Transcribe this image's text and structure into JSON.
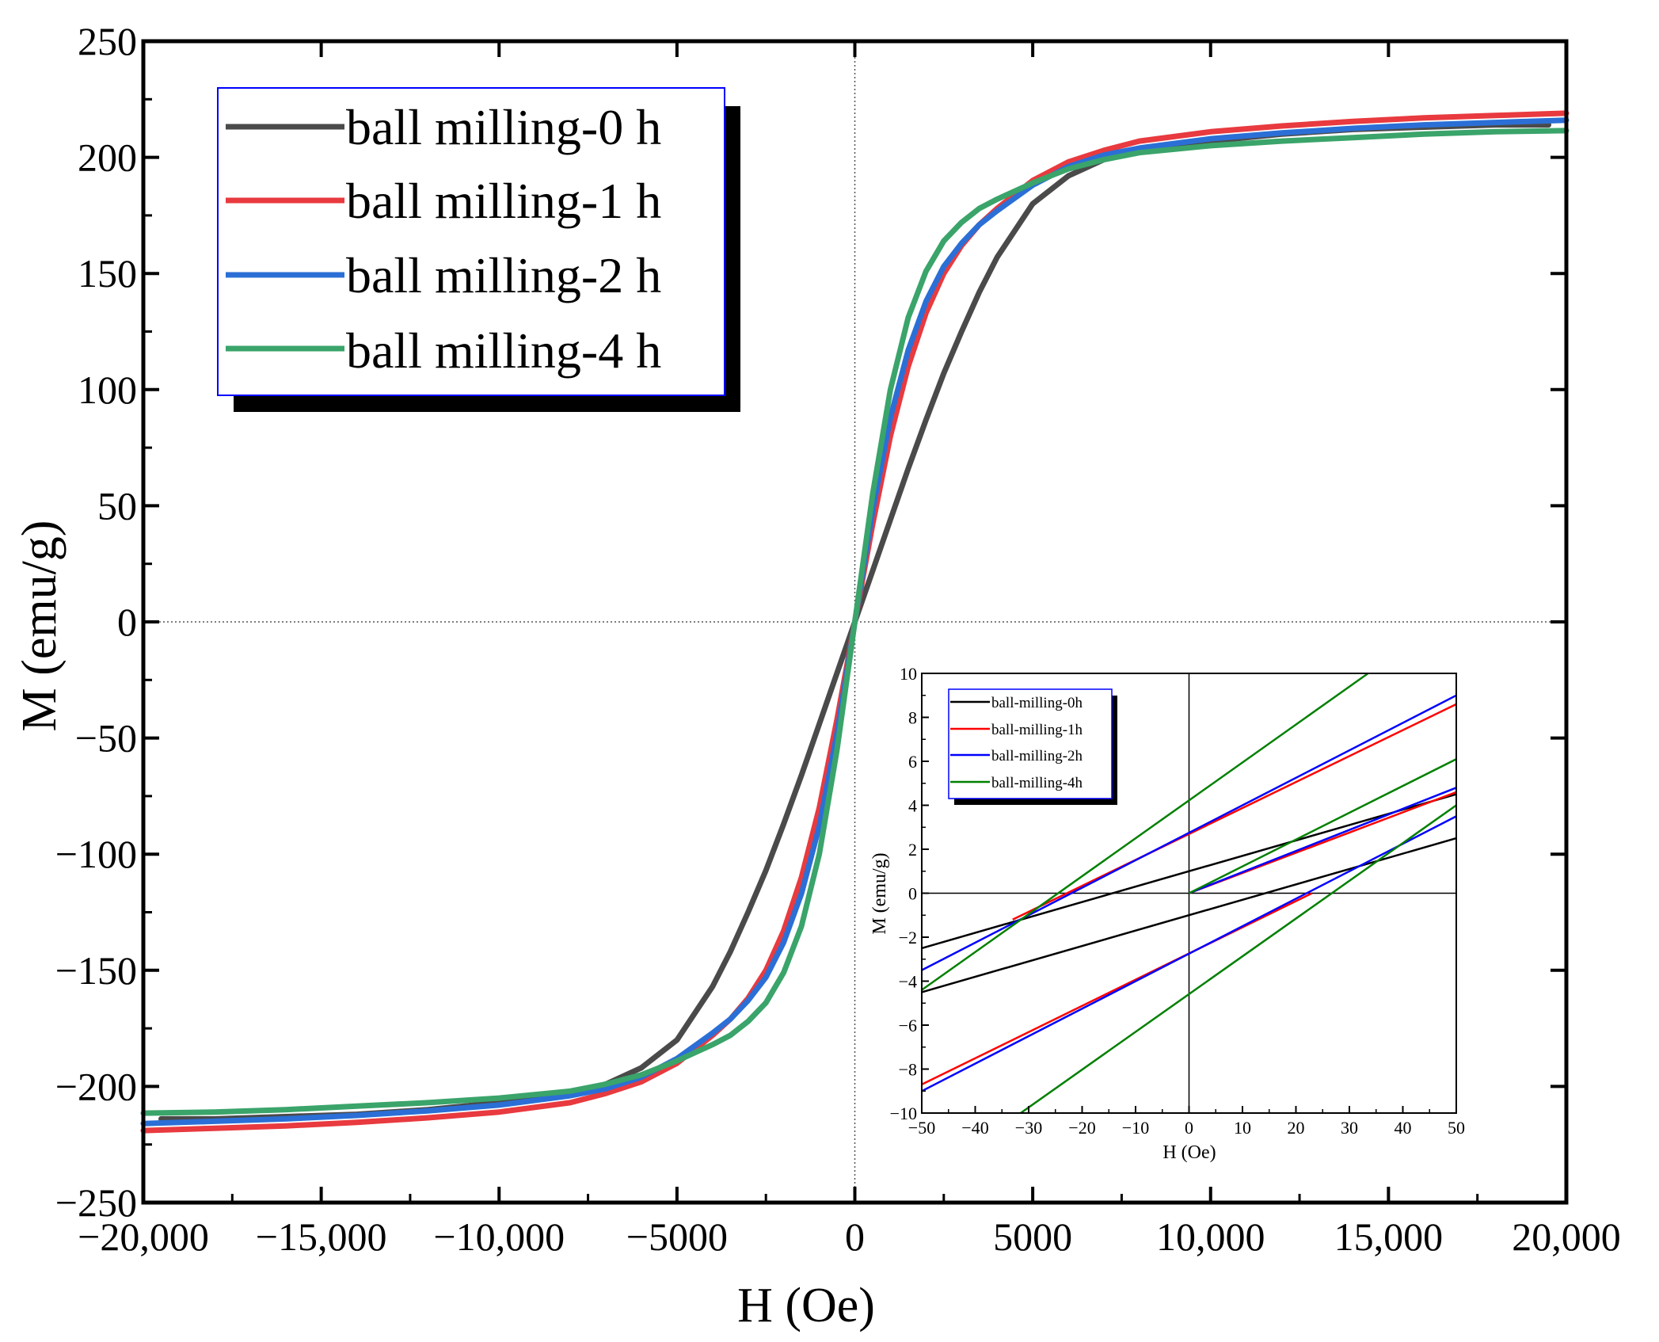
{
  "chart_data": [
    {
      "id": "main",
      "type": "line",
      "title": "",
      "xlabel": "H (Oe)",
      "ylabel": "M (emu/g)",
      "xlim": [
        -20000,
        20000
      ],
      "ylim": [
        -250,
        250
      ],
      "xticks": [
        -20000,
        -15000,
        -10000,
        -5000,
        0,
        5000,
        10000,
        15000,
        20000
      ],
      "xtick_labels": [
        "−20,000",
        "−15,000",
        "−10,000",
        "−5000",
        "0",
        "5000",
        "10,000",
        "15,000",
        "20,000"
      ],
      "yticks": [
        -250,
        -200,
        -150,
        -100,
        -50,
        0,
        50,
        100,
        150,
        200,
        250
      ],
      "ytick_labels": [
        "−250",
        "−200",
        "−150",
        "−100",
        "−50",
        "0",
        "50",
        "100",
        "150",
        "200",
        "250"
      ],
      "zero_lines": true,
      "legend_position": "top-left",
      "series": [
        {
          "name": "ball milling-0 h",
          "color": "#4a4a4a",
          "x": [
            0,
            500,
            1000,
            1500,
            2000,
            2500,
            3000,
            3500,
            4000,
            5000,
            6000,
            7000,
            8000,
            10000,
            12000,
            14000,
            16000,
            18000,
            19500
          ],
          "y": [
            0,
            22,
            44,
            66,
            87,
            107,
            125,
            142,
            157,
            180,
            192,
            199,
            203,
            207,
            210,
            212,
            213,
            214,
            214
          ]
        },
        {
          "name": "ball milling-1 h",
          "color": "#e83a3f",
          "x": [
            0,
            500,
            1000,
            1500,
            2000,
            2500,
            3000,
            3500,
            4000,
            5000,
            6000,
            7000,
            8000,
            10000,
            12000,
            14000,
            16000,
            18000,
            20000
          ],
          "y": [
            0,
            42,
            80,
            110,
            133,
            150,
            162,
            171,
            178,
            190,
            198,
            203,
            207,
            211,
            213.5,
            215.5,
            217,
            218,
            219
          ]
        },
        {
          "name": "ball milling-2 h",
          "color": "#2b6fd6",
          "x": [
            0,
            500,
            1000,
            1500,
            2000,
            2500,
            3000,
            3500,
            4000,
            5000,
            6000,
            7000,
            8000,
            10000,
            12000,
            14000,
            16000,
            18000,
            20000
          ],
          "y": [
            0,
            48,
            88,
            117,
            138,
            153,
            163,
            171,
            177,
            188,
            196,
            201,
            204,
            208,
            210.5,
            212.5,
            214,
            215,
            216
          ]
        },
        {
          "name": "ball milling-4 h",
          "color": "#3aa46a",
          "x": [
            0,
            500,
            1000,
            1500,
            2000,
            2500,
            3000,
            3500,
            4000,
            5000,
            6000,
            7000,
            8000,
            10000,
            12000,
            14000,
            16000,
            18000,
            20000
          ],
          "y": [
            0,
            55,
            100,
            131,
            151,
            164,
            172,
            178,
            182,
            189,
            195,
            199,
            202,
            205,
            207,
            208.5,
            210,
            211,
            211.5
          ]
        }
      ]
    },
    {
      "id": "inset",
      "type": "line",
      "title": "",
      "xlabel": "H (Oe)",
      "ylabel": "M (emu/g)",
      "xlim": [
        -50,
        50
      ],
      "ylim": [
        -10,
        10
      ],
      "xticks": [
        -50,
        -40,
        -30,
        -20,
        -10,
        0,
        10,
        20,
        30,
        40,
        50
      ],
      "xtick_labels": [
        "−50",
        "−40",
        "−30",
        "−20",
        "−10",
        "0",
        "10",
        "20",
        "30",
        "40",
        "50"
      ],
      "yticks": [
        -10,
        -8,
        -6,
        -4,
        -2,
        0,
        2,
        4,
        6,
        8,
        10
      ],
      "ytick_labels": [
        "−10",
        "−8",
        "−6",
        "−4",
        "−2",
        "0",
        "2",
        "4",
        "6",
        "8",
        "10"
      ],
      "zero_lines": true,
      "legend_position": "top-left",
      "series": [
        {
          "name": "ball-milling-0h",
          "color": "#000000",
          "segments": [
            {
              "x": [
                -50,
                50
              ],
              "y": [
                -2.5,
                4.5
              ]
            },
            {
              "x": [
                -50,
                50
              ],
              "y": [
                -4.5,
                2.5
              ]
            }
          ]
        },
        {
          "name": "ball-milling-1h",
          "color": "#ff0000",
          "segments": [
            {
              "x": [
                -33,
                50
              ],
              "y": [
                -1.2,
                8.6
              ]
            },
            {
              "x": [
                -50,
                23
              ],
              "y": [
                -8.7,
                0
              ]
            },
            {
              "x": [
                0,
                50
              ],
              "y": [
                0,
                4.6
              ]
            }
          ]
        },
        {
          "name": "ball-milling-2h",
          "color": "#0000ff",
          "segments": [
            {
              "x": [
                -50,
                50
              ],
              "y": [
                -3.5,
                9.0
              ]
            },
            {
              "x": [
                -50,
                50
              ],
              "y": [
                -9.0,
                3.5
              ]
            },
            {
              "x": [
                0,
                50
              ],
              "y": [
                0,
                4.8
              ]
            }
          ]
        },
        {
          "name": "ball-milling-4h",
          "color": "#008000",
          "segments": [
            {
              "x": [
                -50,
                33.5
              ],
              "y": [
                -4.4,
                10
              ]
            },
            {
              "x": [
                -31.5,
                50
              ],
              "y": [
                -10,
                4.0
              ]
            },
            {
              "x": [
                0,
                50
              ],
              "y": [
                0,
                6.1
              ]
            }
          ]
        }
      ]
    }
  ]
}
